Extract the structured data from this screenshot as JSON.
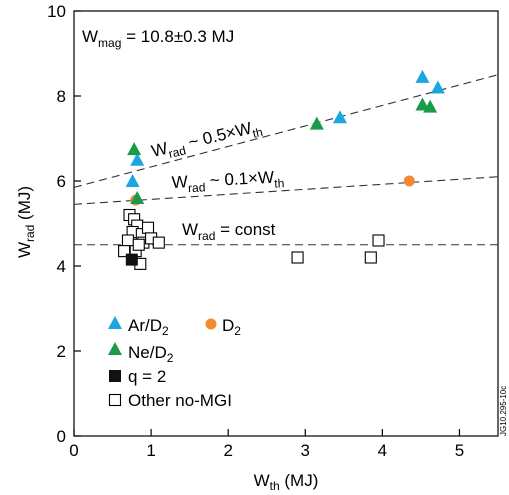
{
  "chart_data": {
    "type": "scatter",
    "xlabel": {
      "main": "W",
      "sub": "th",
      "unit": " (MJ)"
    },
    "ylabel": {
      "main": "W",
      "sub": "rad",
      "unit": " (MJ)"
    },
    "xlim": [
      0,
      5.5
    ],
    "ylim": [
      0,
      10
    ],
    "xticks": [
      0,
      1,
      2,
      3,
      4,
      5
    ],
    "yticks": [
      0,
      2,
      4,
      6,
      8,
      10
    ],
    "grid": false,
    "legend_position": "bottom-left",
    "figure_id": "JG10.295-10c",
    "annotations": {
      "wmag": {
        "main": "W",
        "sub": "mag",
        "rest": " = 10.8±0.3 MJ"
      },
      "fit_05": {
        "main": "W",
        "sub": "rad",
        "mid": " ~ 0.5×W",
        "sub2": "th"
      },
      "fit_01": {
        "main": "W",
        "sub": "rad",
        "mid": " ~ 0.1×W",
        "sub2": "th"
      },
      "const": {
        "main": "W",
        "sub": "rad",
        "rest": " = const"
      }
    },
    "series": [
      {
        "name": "Ar/D2",
        "name_main": "Ar/D",
        "name_sub": "2",
        "marker": "triangle",
        "color": "#1aa7e0",
        "x": [
          0.76,
          0.82,
          3.45,
          4.52,
          4.72
        ],
        "y": [
          6.0,
          6.5,
          7.5,
          8.45,
          8.2
        ]
      },
      {
        "name": "Ne/D2",
        "name_main": "Ne/D",
        "name_sub": "2",
        "marker": "triangle",
        "color": "#1a9a4a",
        "x": [
          0.78,
          0.82,
          3.15,
          4.52,
          4.62
        ],
        "y": [
          6.75,
          5.6,
          7.35,
          7.8,
          7.75
        ]
      },
      {
        "name": "D2",
        "name_main": "D",
        "name_sub": "2",
        "marker": "circle",
        "color": "#f28a30",
        "x": [
          0.8,
          4.35
        ],
        "y": [
          5.55,
          6.0
        ]
      },
      {
        "name": "q = 2",
        "name_main": "q = 2",
        "name_sub": "",
        "marker": "square-filled",
        "color": "#111111",
        "x": [
          0.75
        ],
        "y": [
          4.15
        ]
      },
      {
        "name": "Other no-MGI",
        "name_main": "Other no-MGI",
        "name_sub": "",
        "marker": "square-open",
        "color": "#000000",
        "x": [
          0.72,
          0.78,
          0.82,
          0.76,
          0.88,
          0.96,
          0.7,
          0.9,
          1.0,
          1.1,
          0.8,
          0.86,
          0.65,
          0.84,
          2.9,
          3.85,
          3.95
        ],
        "y": [
          5.2,
          5.1,
          4.95,
          4.8,
          4.75,
          4.9,
          4.6,
          4.55,
          4.65,
          4.55,
          4.35,
          4.05,
          4.35,
          4.5,
          4.2,
          4.2,
          4.6
        ]
      }
    ],
    "lines": [
      {
        "name": "fit_05",
        "x": [
          0,
          5.5
        ],
        "y": [
          5.85,
          8.5
        ],
        "dash": "8,5"
      },
      {
        "name": "fit_01",
        "x": [
          0,
          5.5
        ],
        "y": [
          5.45,
          6.1
        ],
        "dash": "8,5"
      },
      {
        "name": "const",
        "x": [
          0,
          5.5
        ],
        "y": [
          4.5,
          4.5
        ],
        "dash": "8,5"
      }
    ]
  }
}
